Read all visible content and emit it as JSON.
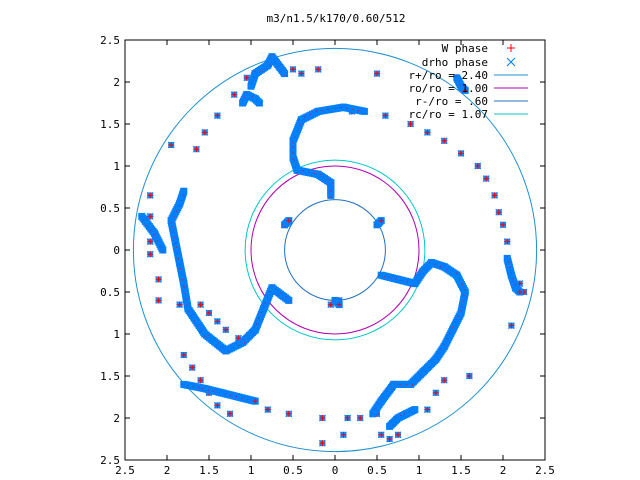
{
  "chart_data": {
    "type": "scatter",
    "title": "m3/n1.5/k170/0.60/512",
    "xlabel": "",
    "ylabel": "",
    "xlim": [
      -2.5,
      2.5
    ],
    "ylim": [
      -2.5,
      2.5
    ],
    "x_ticks": [
      "2.5",
      "2",
      "1.5",
      "1",
      "0.5",
      "0",
      "0.5",
      "1",
      "1.5",
      "2",
      "2.5"
    ],
    "y_ticks": [
      "2.5",
      "2",
      "1.5",
      "1",
      "0.5",
      "0",
      "0.5",
      "1",
      "1.5",
      "2",
      "2.5"
    ],
    "grid": false,
    "legend_position": "top-right",
    "legend": [
      {
        "label": "W phase",
        "kind": "point",
        "marker": "+",
        "color": "#ff0000"
      },
      {
        "label": "drho phase",
        "kind": "point",
        "marker": "x",
        "color": "#0080ff"
      },
      {
        "label": "r+/ro = 2.40",
        "kind": "circle",
        "color": "#1e90d0",
        "radius": 2.4
      },
      {
        "label": "ro/ro = 1.00",
        "kind": "circle",
        "color": "#b000b0",
        "radius": 1.0
      },
      {
        "label": "r-/ro = .60",
        "kind": "circle",
        "color": "#2070c0",
        "radius": 0.6
      },
      {
        "label": "rc/ro = 1.07",
        "kind": "circle",
        "color": "#00c8c8",
        "radius": 1.07
      }
    ],
    "series": [
      {
        "name": "W phase",
        "points": [
          [
            -0.6,
            2.1
          ],
          [
            -0.5,
            2.15
          ],
          [
            -0.4,
            2.1
          ],
          [
            -0.2,
            2.15
          ],
          [
            0.5,
            2.1
          ],
          [
            -1.05,
            2.05
          ],
          [
            -1.2,
            1.85
          ],
          [
            -1.4,
            1.6
          ],
          [
            -1.55,
            1.4
          ],
          [
            -1.65,
            1.2
          ],
          [
            -1.95,
            1.25
          ],
          [
            -0.3,
            1.6
          ],
          [
            0.2,
            1.65
          ],
          [
            0.6,
            1.6
          ],
          [
            0.9,
            1.5
          ],
          [
            1.1,
            1.4
          ],
          [
            1.3,
            1.3
          ],
          [
            1.5,
            1.15
          ],
          [
            1.7,
            1.0
          ],
          [
            1.8,
            0.85
          ],
          [
            1.9,
            0.65
          ],
          [
            1.95,
            0.45
          ],
          [
            2.0,
            0.3
          ],
          [
            2.05,
            0.1
          ],
          [
            2.2,
            -0.4
          ],
          [
            2.25,
            -0.5
          ],
          [
            2.1,
            -0.9
          ],
          [
            1.6,
            -1.5
          ],
          [
            -2.2,
            0.65
          ],
          [
            -2.2,
            0.4
          ],
          [
            -2.2,
            0.1
          ],
          [
            -2.2,
            -0.05
          ],
          [
            -2.1,
            -0.35
          ],
          [
            -2.1,
            -0.6
          ],
          [
            -1.85,
            -0.65
          ],
          [
            -1.6,
            -0.65
          ],
          [
            -1.5,
            -0.75
          ],
          [
            -1.4,
            -0.85
          ],
          [
            -1.3,
            -0.95
          ],
          [
            -1.15,
            -1.05
          ],
          [
            -1.8,
            -1.25
          ],
          [
            -1.7,
            -1.4
          ],
          [
            -1.6,
            -1.55
          ],
          [
            -1.5,
            -1.7
          ],
          [
            -1.4,
            -1.85
          ],
          [
            -1.25,
            -1.95
          ],
          [
            -0.8,
            -1.9
          ],
          [
            -0.55,
            -1.95
          ],
          [
            -0.15,
            -2.0
          ],
          [
            0.15,
            -2.0
          ],
          [
            0.3,
            -2.0
          ],
          [
            0.5,
            -1.95
          ],
          [
            0.55,
            -2.2
          ],
          [
            0.65,
            -2.25
          ],
          [
            0.75,
            -2.2
          ],
          [
            1.1,
            -1.9
          ],
          [
            1.2,
            -1.7
          ],
          [
            1.3,
            -1.55
          ],
          [
            -0.15,
            -2.3
          ],
          [
            0.1,
            -2.2
          ],
          [
            -0.05,
            -0.65
          ],
          [
            0.05,
            -0.6
          ]
        ]
      },
      {
        "name": "drho phase",
        "segments": [
          [
            [
              -0.05,
              0.65
            ],
            [
              -0.05,
              0.8
            ],
            [
              -0.2,
              0.9
            ],
            [
              -0.45,
              0.95
            ],
            [
              -0.5,
              1.1
            ],
            [
              -0.5,
              1.3
            ],
            [
              -0.4,
              1.55
            ],
            [
              -0.2,
              1.65
            ],
            [
              0.1,
              1.7
            ],
            [
              0.35,
              1.65
            ]
          ],
          [
            [
              -0.6,
              2.1
            ],
            [
              -0.75,
              2.3
            ],
            [
              -0.8,
              2.2
            ],
            [
              -0.95,
              2.1
            ],
            [
              -1.0,
              1.95
            ]
          ],
          [
            [
              -0.9,
              1.75
            ],
            [
              -0.95,
              1.8
            ],
            [
              -1.05,
              1.85
            ],
            [
              -1.1,
              1.75
            ]
          ],
          [
            [
              -0.55,
              -0.6
            ],
            [
              -0.75,
              -0.45
            ],
            [
              -0.85,
              -0.7
            ],
            [
              -0.95,
              -0.95
            ],
            [
              -1.1,
              -1.1
            ],
            [
              -1.3,
              -1.2
            ],
            [
              -1.55,
              -1.0
            ],
            [
              -1.75,
              -0.7
            ],
            [
              -1.8,
              -0.4
            ],
            [
              -1.85,
              -0.15
            ],
            [
              -1.9,
              0.1
            ],
            [
              -1.95,
              0.35
            ],
            [
              -1.85,
              0.55
            ],
            [
              -1.8,
              0.7
            ]
          ],
          [
            [
              0.55,
              -0.3
            ],
            [
              0.75,
              -0.35
            ],
            [
              0.95,
              -0.4
            ],
            [
              1.05,
              -0.25
            ],
            [
              1.15,
              -0.15
            ],
            [
              1.3,
              -0.2
            ],
            [
              1.45,
              -0.3
            ],
            [
              1.55,
              -0.5
            ],
            [
              1.5,
              -0.75
            ],
            [
              1.4,
              -0.95
            ],
            [
              1.3,
              -1.15
            ],
            [
              1.2,
              -1.3
            ],
            [
              1.05,
              -1.45
            ],
            [
              0.9,
              -1.6
            ],
            [
              0.7,
              -1.6
            ],
            [
              0.55,
              -1.8
            ],
            [
              0.45,
              -1.95
            ]
          ],
          [
            [
              2.05,
              -0.1
            ],
            [
              2.1,
              -0.3
            ],
            [
              2.15,
              -0.45
            ],
            [
              2.2,
              -0.5
            ]
          ],
          [
            [
              1.45,
              2.05
            ],
            [
              1.5,
              1.95
            ],
            [
              1.55,
              1.9
            ]
          ],
          [
            [
              -2.05,
              0.0
            ],
            [
              -2.15,
              0.2
            ],
            [
              -2.3,
              0.4
            ]
          ],
          [
            [
              -1.8,
              -1.6
            ],
            [
              -1.55,
              -1.65
            ],
            [
              -1.35,
              -1.7
            ],
            [
              -1.15,
              -1.75
            ],
            [
              -0.95,
              -1.8
            ]
          ],
          [
            [
              0.65,
              -2.1
            ],
            [
              0.75,
              -2.0
            ],
            [
              0.85,
              -1.95
            ],
            [
              0.95,
              -1.9
            ]
          ],
          [
            [
              0.5,
              0.3
            ],
            [
              0.55,
              0.35
            ]
          ],
          [
            [
              -0.6,
              0.3
            ],
            [
              -0.55,
              0.35
            ]
          ],
          [
            [
              0.0,
              -0.6
            ],
            [
              0.05,
              -0.65
            ]
          ]
        ]
      }
    ]
  }
}
